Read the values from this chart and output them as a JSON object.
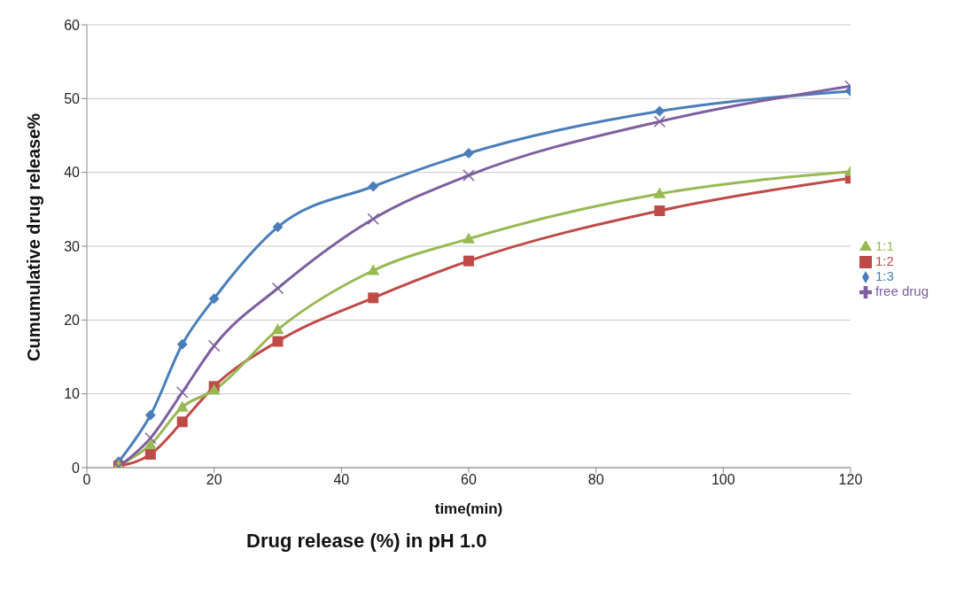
{
  "chart_data": {
    "type": "line",
    "title": "Drug release (%) in pH 1.0",
    "xlabel": "time(min)",
    "ylabel": "Cumumulative drug release%",
    "x": [
      5,
      10,
      15,
      20,
      30,
      45,
      60,
      90,
      120
    ],
    "series": [
      {
        "name": "1:3",
        "color": "#4a7ebb",
        "marker": "diamond",
        "values": [
          0.8,
          7.1,
          16.7,
          22.9,
          32.6,
          38.1,
          42.6,
          48.3,
          51.0
        ]
      },
      {
        "name": "1:2",
        "color": "#be4b48",
        "marker": "square",
        "values": [
          0.2,
          1.8,
          6.2,
          11.0,
          17.1,
          23.0,
          28.0,
          34.8,
          39.2
        ]
      },
      {
        "name": "1:1",
        "color": "#98b954",
        "marker": "triangle",
        "values": [
          0.3,
          3.1,
          8.2,
          10.5,
          18.7,
          26.7,
          31.0,
          37.1,
          40.1
        ]
      },
      {
        "name": "free drug",
        "color": "#7d60a0",
        "marker": "cross",
        "values": [
          0.1,
          4.0,
          10.2,
          16.5,
          24.3,
          33.7,
          39.6,
          46.9,
          51.7
        ]
      }
    ],
    "xlim": [
      0,
      120
    ],
    "xticks": [
      0,
      20,
      40,
      60,
      80,
      100,
      120
    ],
    "ylim": [
      0,
      60
    ],
    "yticks": [
      0,
      10,
      20,
      30,
      40,
      50,
      60
    ],
    "grid": "y",
    "legend": "right",
    "line_style": "solid"
  }
}
